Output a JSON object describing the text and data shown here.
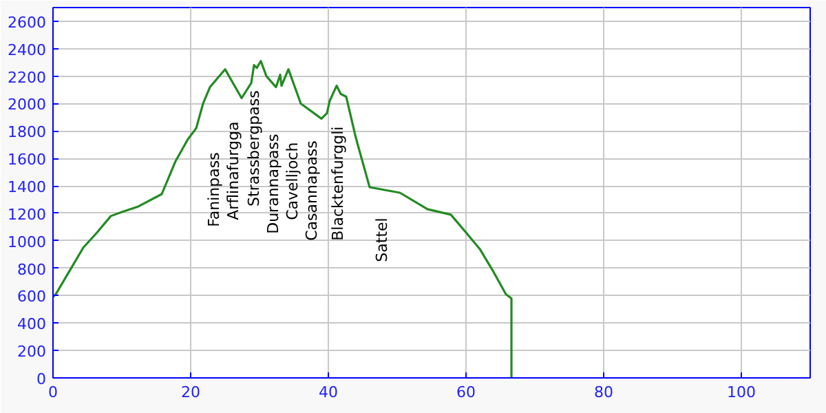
{
  "chart_data": {
    "type": "line",
    "x": [
      0,
      0.4,
      2.4,
      4.4,
      6.4,
      8.4,
      10,
      12.4,
      15.8,
      17.8,
      19.6,
      20.8,
      21.8,
      22.8,
      25,
      27.4,
      28.8,
      29.2,
      29.6,
      30.2,
      31,
      32.4,
      33,
      33.2,
      34.2,
      36,
      39,
      39.8,
      40.2,
      41.2,
      41.8,
      42.6,
      44,
      46,
      50.4,
      54.4,
      57.8,
      60,
      62,
      63.8,
      65.8,
      66.6,
      66.6
    ],
    "series": [
      {
        "color": "#228b22",
        "values": [
          590,
          610,
          780,
          950,
          1060,
          1180,
          1210,
          1250,
          1340,
          1580,
          1740,
          1820,
          2000,
          2120,
          2250,
          2040,
          2150,
          2280,
          2260,
          2310,
          2200,
          2120,
          2210,
          2130,
          2250,
          2000,
          1890,
          1930,
          2020,
          2130,
          2070,
          2050,
          1750,
          1390,
          1350,
          1230,
          1190,
          1060,
          940,
          790,
          610,
          580,
          0
        ]
      }
    ],
    "annotations": [
      "Faninpass",
      "Arflinafurgga",
      "Strassbergpass",
      "Durannapass",
      "Cavelljoch",
      "Casannapass",
      "Blacktenfurggli",
      "Sattel"
    ],
    "xlim": [
      0,
      110
    ],
    "ylim": [
      0,
      2700
    ],
    "xticks": [
      0,
      20,
      40,
      60,
      80,
      100
    ],
    "yticks": [
      0,
      200,
      400,
      600,
      800,
      1000,
      1200,
      1400,
      1600,
      1800,
      2000,
      2200,
      2400,
      2600
    ],
    "grid": true,
    "marker": "none",
    "line_style": "solid"
  }
}
